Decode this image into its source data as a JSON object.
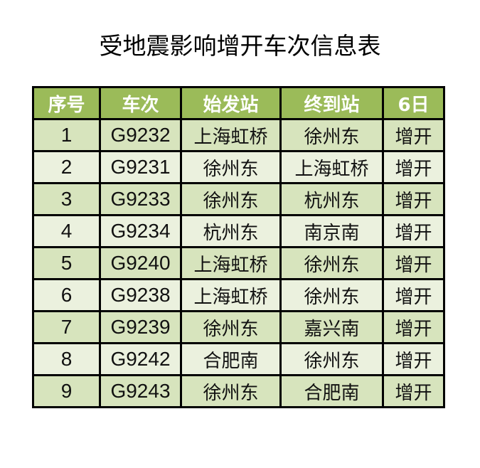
{
  "title": "受地震影响增开车次信息表",
  "colors": {
    "header_bg": "#9bbb59",
    "row_odd": "#d7e4bd",
    "row_even": "#ebf1de",
    "border": "#000000"
  },
  "table": {
    "headers": [
      "序号",
      "车次",
      "始发站",
      "终到站",
      "6日"
    ],
    "rows": [
      [
        "1",
        "G9232",
        "上海虹桥",
        "徐州东",
        "增开"
      ],
      [
        "2",
        "G9231",
        "徐州东",
        "上海虹桥",
        "增开"
      ],
      [
        "3",
        "G9233",
        "徐州东",
        "杭州东",
        "增开"
      ],
      [
        "4",
        "G9234",
        "杭州东",
        "南京南",
        "增开"
      ],
      [
        "5",
        "G9240",
        "上海虹桥",
        "徐州东",
        "增开"
      ],
      [
        "6",
        "G9238",
        "上海虹桥",
        "徐州东",
        "增开"
      ],
      [
        "7",
        "G9239",
        "徐州东",
        "嘉兴南",
        "增开"
      ],
      [
        "8",
        "G9242",
        "合肥南",
        "徐州东",
        "增开"
      ],
      [
        "9",
        "G9243",
        "徐州东",
        "合肥南",
        "增开"
      ]
    ]
  }
}
